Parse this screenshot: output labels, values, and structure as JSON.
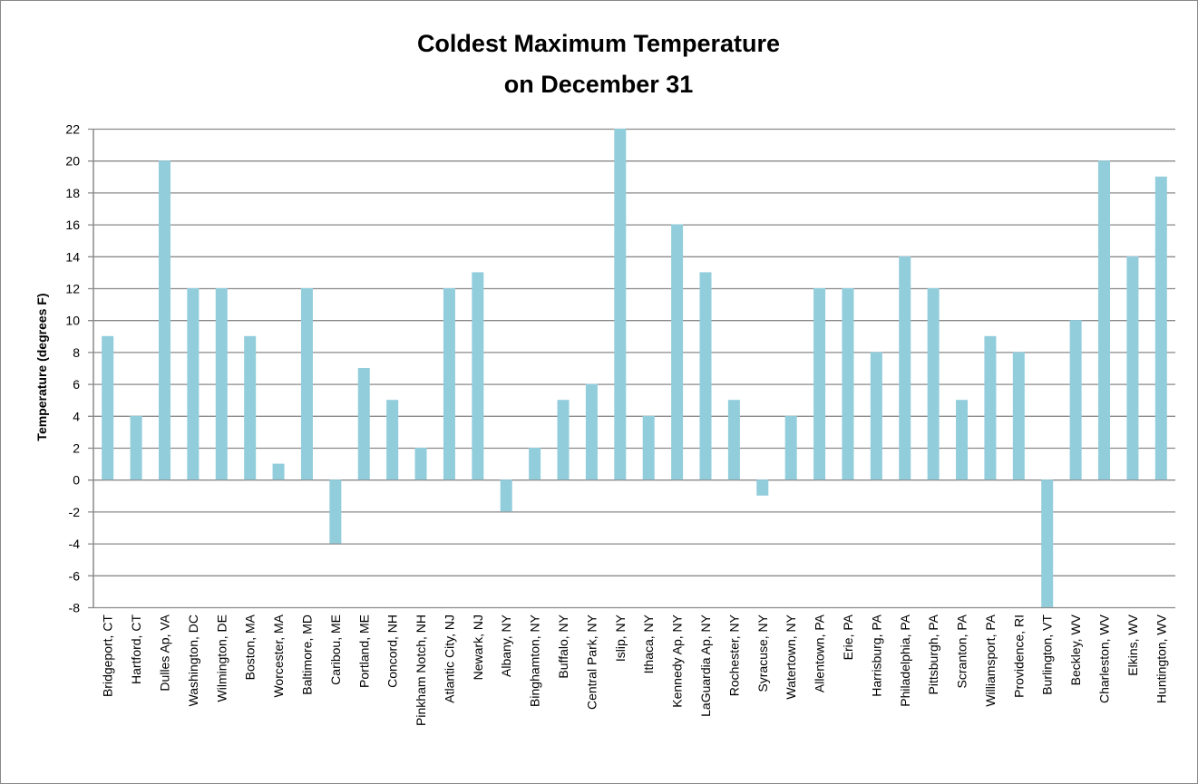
{
  "chart_data": {
    "type": "bar",
    "title": [
      "Coldest Maximum Temperature",
      "on December 31"
    ],
    "xlabel": "",
    "ylabel": "Temperature (degrees F)",
    "ylim": [
      -8,
      22
    ],
    "yticks": [
      -8,
      -6,
      -4,
      -2,
      0,
      2,
      4,
      6,
      8,
      10,
      12,
      14,
      16,
      18,
      20,
      22
    ],
    "grid": true,
    "legend": "none",
    "bar_color": "#92cddc",
    "categories": [
      "Bridgeport, CT",
      "Hartford, CT",
      "Dulles Ap, VA",
      "Washington, DC",
      "Wilmington, DE",
      "Boston, MA",
      "Worcester, MA",
      "Baltimore, MD",
      "Caribou, ME",
      "Portland, ME",
      "Concord, NH",
      "Pinkham Notch, NH",
      "Atlantic City, NJ",
      "Newark, NJ",
      "Albany, NY",
      "Binghamton, NY",
      "Buffalo, NY",
      "Central Park, NY",
      "Islip, NY",
      "Ithaca, NY",
      "Kennedy Ap, NY",
      "LaGuardia Ap, NY",
      "Rochester, NY",
      "Syracuse, NY",
      "Watertown, NY",
      "Allentown, PA",
      "Erie, PA",
      "Harrisburg, PA",
      "Philadelphia, PA",
      "Pittsburgh, PA",
      "Scranton, PA",
      "Williamsport, PA",
      "Providence, RI",
      "Burlington, VT",
      "Beckley, WV",
      "Charleston, WV",
      "Elkins, WV",
      "Huntington, WV"
    ],
    "values": [
      9,
      4,
      20,
      12,
      12,
      9,
      1,
      12,
      -4,
      7,
      5,
      2,
      12,
      13,
      -2,
      2,
      5,
      6,
      22,
      4,
      16,
      13,
      5,
      -1,
      4,
      12,
      12,
      8,
      14,
      12,
      5,
      9,
      8,
      -8,
      10,
      20,
      14,
      19
    ]
  }
}
